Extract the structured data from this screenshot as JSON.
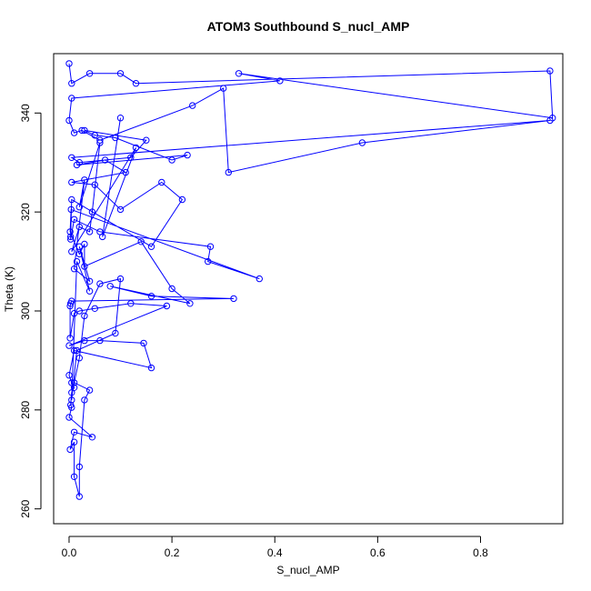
{
  "chart_data": {
    "type": "line",
    "title": "ATOM3 Southbound S_nucl_AMP",
    "xlabel": "S_nucl_AMP",
    "ylabel": "Theta (K)",
    "xlim": [
      -0.03,
      0.96
    ],
    "ylim": [
      257,
      352
    ],
    "x_ticks": [
      0.0,
      0.2,
      0.4,
      0.6,
      0.8
    ],
    "x_tick_labels": [
      "0.0",
      "0.2",
      "0.4",
      "0.6",
      "0.8"
    ],
    "y_ticks": [
      260,
      280,
      300,
      320,
      340
    ],
    "y_tick_labels": [
      "260",
      "280",
      "300",
      "320",
      "340"
    ],
    "grid": false,
    "legend": "none",
    "color": "#0000ff",
    "marker": "open-circle",
    "series": [
      {
        "x": [
          0.0,
          0.005,
          0.04,
          0.1,
          0.13,
          0.935,
          0.94,
          0.33,
          0.41,
          0.005,
          0.0,
          0.01,
          0.025,
          0.06,
          0.24,
          0.3,
          0.31,
          0.57,
          0.935,
          0.005,
          0.02,
          0.12,
          0.15,
          0.03,
          0.05,
          0.09,
          0.2,
          0.23,
          0.015,
          0.07,
          0.11,
          0.005,
          0.05,
          0.1,
          0.18,
          0.22,
          0.16,
          0.005,
          0.003,
          0.003,
          0.01,
          0.06,
          0.275,
          0.27,
          0.37,
          0.004,
          0.002,
          0.02,
          0.03,
          0.03,
          0.14,
          0.2,
          0.235,
          0.08,
          0.16,
          0.32,
          0.005,
          0.003,
          0.002,
          0.002,
          0.01,
          0.02,
          0.05,
          0.12,
          0.19,
          0.0,
          0.03,
          0.06,
          0.145,
          0.16,
          0.01,
          0.0,
          0.005,
          0.01,
          0.005,
          0.003,
          0.005,
          0.0,
          0.045,
          0.01,
          0.002,
          0.01,
          0.01,
          0.02,
          0.02,
          0.03,
          0.04,
          0.01,
          0.02,
          0.03,
          0.06,
          0.1,
          0.09,
          0.015,
          0.005,
          0.015,
          0.04,
          0.02,
          0.04,
          0.01,
          0.03,
          0.02,
          0.06,
          0.045,
          0.04,
          0.02,
          0.005,
          0.13,
          0.065,
          0.1
        ],
        "y": [
          350,
          346,
          348,
          348,
          346,
          348.5,
          339,
          348,
          346.5,
          343,
          338.5,
          336,
          336.5,
          334.5,
          341.5,
          345,
          328,
          334,
          338.5,
          331,
          330,
          331,
          334.5,
          336.5,
          335.5,
          335,
          330.5,
          331.5,
          329.5,
          330.5,
          328,
          326,
          325.5,
          320.5,
          326,
          322.5,
          313,
          322.5,
          315,
          314.5,
          318.5,
          316,
          313,
          310,
          306.5,
          320.5,
          316,
          311.5,
          313.5,
          309,
          314,
          304.5,
          301.5,
          305,
          303,
          302.5,
          302,
          301.5,
          301,
          294.5,
          299.5,
          300,
          300.5,
          301.5,
          301,
          293,
          294,
          294,
          293.5,
          288.5,
          292,
          287,
          285.5,
          284.5,
          283.5,
          281,
          280.5,
          278.5,
          274.5,
          275.5,
          272,
          273.5,
          266.5,
          262.5,
          268.5,
          282,
          284,
          285.5,
          290.5,
          299,
          305.5,
          306.5,
          295.5,
          292,
          282,
          310,
          304,
          313,
          306,
          308.5,
          326.5,
          321,
          334,
          320,
          316,
          317,
          312,
          333,
          315,
          339
        ]
      }
    ]
  }
}
